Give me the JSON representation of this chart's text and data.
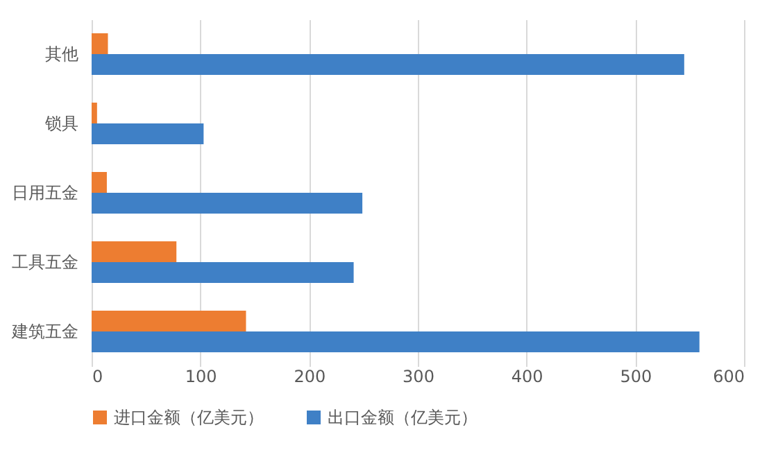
{
  "chart_data": {
    "type": "bar",
    "orientation": "horizontal",
    "categories": [
      "其他",
      "锁具",
      "日用五金",
      "工具五金",
      "建筑五金"
    ],
    "series": [
      {
        "name": "进口金额（亿美元）",
        "color": "#ed7d31",
        "values": [
          15,
          5,
          14,
          78,
          142
        ]
      },
      {
        "name": "出口金额（亿美元）",
        "color": "#3f80c6",
        "values": [
          545,
          103,
          249,
          241,
          559
        ]
      }
    ],
    "xlim": [
      0,
      600
    ],
    "xticks": [
      0,
      100,
      200,
      300,
      400,
      500,
      600
    ],
    "grid": "x",
    "legend": "bottom"
  }
}
